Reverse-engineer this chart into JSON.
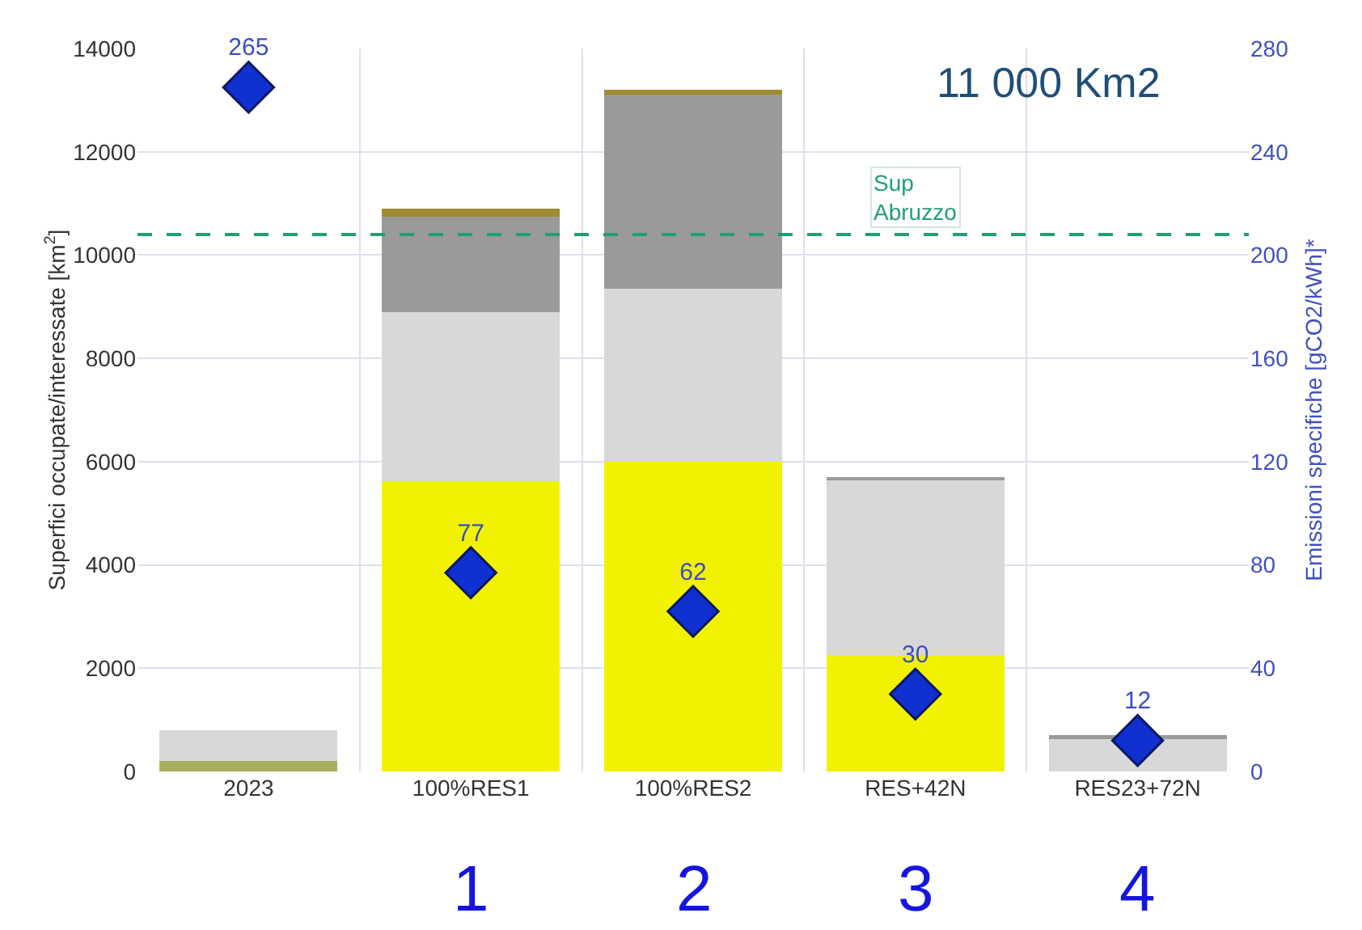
{
  "chart_data": {
    "type": "bar",
    "stacked": true,
    "categories": [
      "2023",
      "100%RES1",
      "100%RES2",
      "RES+42N",
      "RES23+72N"
    ],
    "ylabel": "Superfici occupate/interessate [km$^{2}$]",
    "y2label": "Emissioni specifiche [gCO2/kWh]*",
    "ylim": [
      0,
      14000
    ],
    "yticks": [
      0,
      2000,
      4000,
      6000,
      8000,
      10000,
      12000,
      14000
    ],
    "y2lim": [
      0,
      280
    ],
    "y2ticks": [
      0,
      40,
      80,
      120,
      160,
      200,
      240,
      280
    ],
    "grid": true,
    "marker": "diamond",
    "series": [
      {
        "color": "#a8b060",
        "values": [
          200,
          0,
          0,
          0,
          0
        ]
      },
      {
        "color": "#f2f200",
        "values": [
          0,
          5600,
          6000,
          2250,
          0
        ]
      },
      {
        "color": "#d8d8d8",
        "values": [
          600,
          3300,
          3350,
          3400,
          650
        ]
      },
      {
        "color": "#9a9a9a",
        "values": [
          0,
          1850,
          3750,
          50,
          50
        ]
      },
      {
        "color": "#a08c30",
        "values": [
          0,
          150,
          100,
          0,
          0
        ]
      },
      {
        "type": "scatter",
        "axis": "y2",
        "color": "#1030d0",
        "values": [
          265,
          77,
          62,
          30,
          12
        ],
        "data_labels": true
      }
    ],
    "ref_lines": [
      {
        "axis": "y",
        "value": 10400,
        "label": "Sup Abruzzo",
        "color": "#20a070",
        "line_style": "dashed"
      }
    ],
    "annotations": [
      "11 000 Km2",
      "1",
      "2",
      "3",
      "4"
    ]
  }
}
